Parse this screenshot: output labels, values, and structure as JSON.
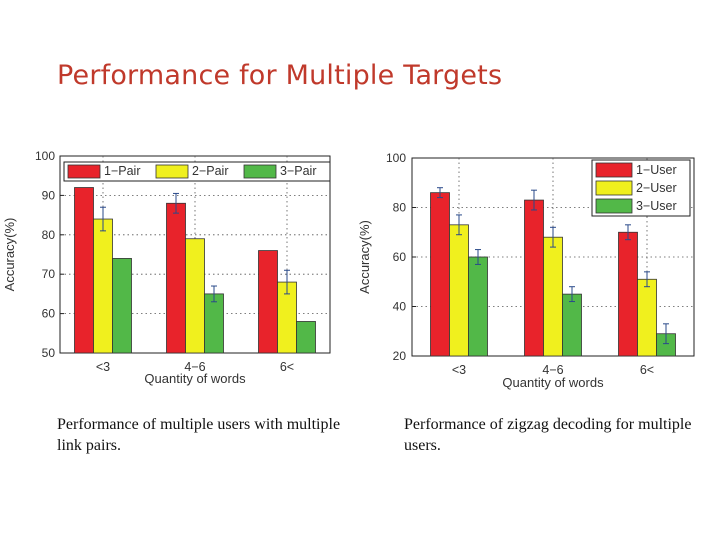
{
  "slide": {
    "title": "Performance for Multiple Targets"
  },
  "captions": {
    "left": "Performance of multiple users with multiple link pairs.",
    "right": "Performance of zigzag decoding for multiple users."
  },
  "colors": {
    "title": "#c0392b",
    "red": "#e8232b",
    "yellow": "#f0f01e",
    "green": "#52b848"
  },
  "chart_data": [
    {
      "type": "bar",
      "categories": [
        "<3",
        "4-6",
        "6<"
      ],
      "series": [
        {
          "name": "1-Pair",
          "values": [
            92,
            88,
            76
          ],
          "errors": [
            0,
            2.5,
            0
          ]
        },
        {
          "name": "2-Pair",
          "values": [
            84,
            79,
            68
          ],
          "errors": [
            3,
            0,
            3
          ]
        },
        {
          "name": "3-Pair",
          "values": [
            74,
            65,
            58
          ],
          "errors": [
            0,
            2,
            0
          ]
        }
      ],
      "xlabel": "Quantity of words",
      "ylabel": "Accuracy(%)",
      "ylim": [
        50,
        100
      ],
      "yticks": [
        50,
        60,
        70,
        80,
        90,
        100
      ],
      "legend": "top"
    },
    {
      "type": "bar",
      "categories": [
        "<3",
        "4-6",
        "6<"
      ],
      "series": [
        {
          "name": "1-User",
          "values": [
            86,
            83,
            70
          ],
          "errors": [
            2,
            4,
            3
          ]
        },
        {
          "name": "2-User",
          "values": [
            73,
            68,
            51
          ],
          "errors": [
            4,
            4,
            3
          ]
        },
        {
          "name": "3-User",
          "values": [
            60,
            45,
            29
          ],
          "errors": [
            3,
            3,
            4
          ]
        }
      ],
      "xlabel": "Quantity of words",
      "ylabel": "Accuracy(%)",
      "ylim": [
        20,
        100
      ],
      "yticks": [
        20,
        40,
        60,
        80,
        100
      ],
      "legend": "top-right"
    }
  ]
}
